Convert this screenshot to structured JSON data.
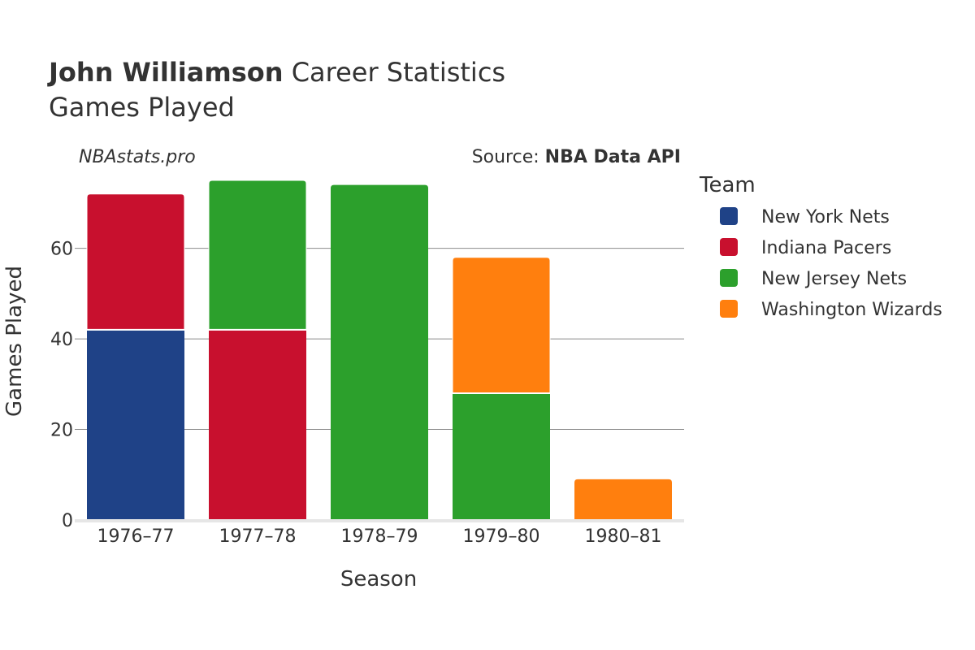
{
  "title": {
    "bold": "John Williamson",
    "rest": " Career Statistics",
    "subtitle": "Games Played"
  },
  "watermark": "NBAstats.pro",
  "source": {
    "prefix": "Source: ",
    "name": "NBA Data API"
  },
  "legend": {
    "title": "Team"
  },
  "chart_data": {
    "type": "bar",
    "stacked": true,
    "title": "John Williamson Career Statistics",
    "subtitle": "Games Played",
    "xlabel": "Season",
    "ylabel": "Games Played",
    "ylim": [
      0,
      75
    ],
    "yticks": [
      0,
      20,
      40,
      60
    ],
    "grid": true,
    "legend_position": "right",
    "categories": [
      "1976–77",
      "1977–78",
      "1978–79",
      "1979–80",
      "1980–81"
    ],
    "series": [
      {
        "name": "New York Nets",
        "color": "#1f4287",
        "values": [
          42,
          0,
          0,
          0,
          0
        ]
      },
      {
        "name": "Indiana Pacers",
        "color": "#c8102e",
        "values": [
          30,
          42,
          0,
          0,
          0
        ]
      },
      {
        "name": "New Jersey Nets",
        "color": "#2ca02c",
        "values": [
          0,
          33,
          74,
          28,
          0
        ]
      },
      {
        "name": "Washington Wizards",
        "color": "#ff7f0e",
        "values": [
          0,
          0,
          0,
          30,
          9
        ]
      }
    ]
  }
}
